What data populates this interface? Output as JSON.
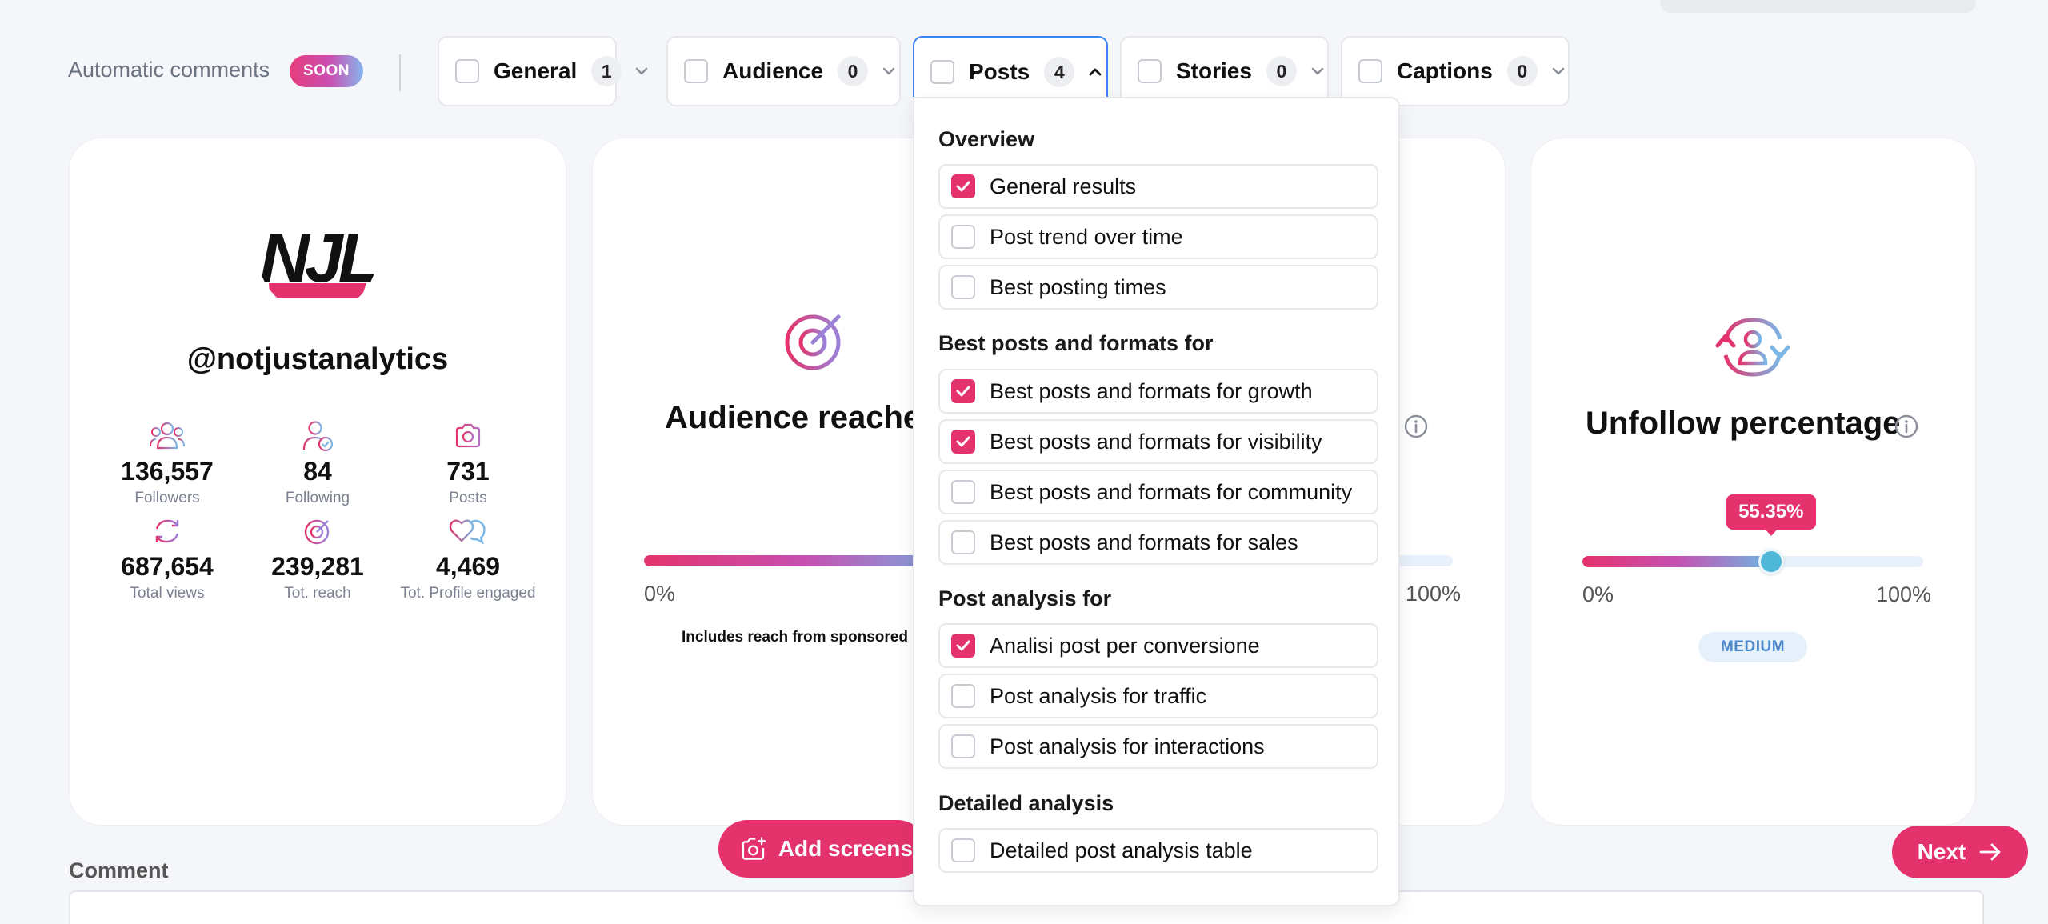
{
  "header": {
    "auto_comments_label": "Automatic comments",
    "soon_badge": "SOON"
  },
  "filters": [
    {
      "label": "General",
      "count": "1",
      "open": false
    },
    {
      "label": "Audience",
      "count": "0",
      "open": false
    },
    {
      "label": "Posts",
      "count": "4",
      "open": true
    },
    {
      "label": "Stories",
      "count": "0",
      "open": false
    },
    {
      "label": "Captions",
      "count": "0",
      "open": false
    }
  ],
  "profile": {
    "logo_text": "NJL",
    "username": "@notjustanalytics",
    "stats": [
      {
        "value": "136,557",
        "label": "Followers",
        "icon": "users-icon"
      },
      {
        "value": "84",
        "label": "Following",
        "icon": "user-check-icon"
      },
      {
        "value": "731",
        "label": "Posts",
        "icon": "camera-icon"
      },
      {
        "value": "687,654",
        "label": "Total views",
        "icon": "refresh-icon"
      },
      {
        "value": "239,281",
        "label": "Tot. reach",
        "icon": "target-icon"
      },
      {
        "value": "4,469",
        "label": "Tot. Profile engaged",
        "icon": "heart-chat-icon"
      }
    ]
  },
  "reach_card": {
    "title": "Audience reached",
    "min_label": "0%",
    "max_label": "100%",
    "note": "Includes reach from sponsored p"
  },
  "unfollow_card": {
    "title": "Unfollow percentage",
    "value_label": "55.35%",
    "value": 0.5535,
    "min_label": "0%",
    "max_label": "100%",
    "level": "MEDIUM"
  },
  "dropdown": {
    "sections": [
      {
        "title": "Overview",
        "options": [
          {
            "label": "General results",
            "checked": true
          },
          {
            "label": "Post trend over time",
            "checked": false
          },
          {
            "label": "Best posting times",
            "checked": false
          }
        ]
      },
      {
        "title": "Best posts and formats for",
        "options": [
          {
            "label": "Best posts and formats for growth",
            "checked": true
          },
          {
            "label": "Best posts and formats for visibility",
            "checked": true
          },
          {
            "label": "Best posts and formats for community",
            "checked": false
          },
          {
            "label": "Best posts and formats for sales",
            "checked": false
          }
        ]
      },
      {
        "title": "Post analysis for",
        "options": [
          {
            "label": "Analisi post per conversione",
            "checked": true
          },
          {
            "label": "Post analysis for traffic",
            "checked": false
          },
          {
            "label": "Post analysis for interactions",
            "checked": false
          }
        ]
      },
      {
        "title": "Detailed analysis",
        "options": [
          {
            "label": "Detailed post analysis table",
            "checked": false
          }
        ]
      }
    ]
  },
  "footer": {
    "comment_label": "Comment",
    "add_screenshot_label": "Add screensh",
    "next_label": "Next"
  },
  "colors": {
    "accent": "#e4336c",
    "active_border": "#3b82f6",
    "knob": "#4fb8d8"
  }
}
